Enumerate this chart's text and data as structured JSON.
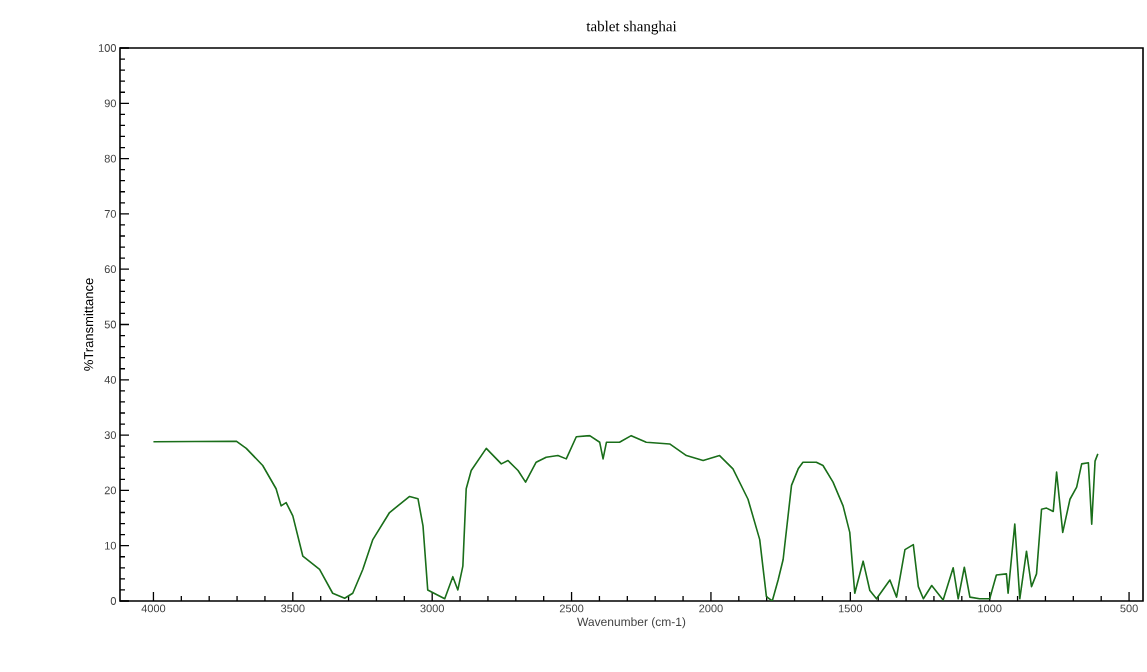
{
  "chart_data": {
    "type": "line",
    "title": "tablet shanghai",
    "xlabel": "Wavenumber (cm-1)",
    "ylabel": "%Transmittance",
    "xlim": [
      4120,
      450
    ],
    "ylim": [
      0,
      100
    ],
    "xticks": [
      4000,
      3500,
      3000,
      2500,
      2000,
      1500,
      1000,
      500
    ],
    "yticks": [
      0,
      10,
      20,
      30,
      40,
      50,
      60,
      70,
      80,
      90,
      100
    ],
    "grid": false,
    "marker": "none",
    "line_style": "solid",
    "series": [
      {
        "color": "#1a6e1a",
        "x": [
          4000,
          3703,
          3667,
          3608,
          3560,
          3542,
          3524,
          3500,
          3464,
          3404,
          3357,
          3314,
          3285,
          3249,
          3213,
          3153,
          3081,
          3051,
          3033,
          3016,
          2955,
          2926,
          2908,
          2890,
          2878,
          2860,
          2806,
          2752,
          2728,
          2692,
          2665,
          2627,
          2591,
          2549,
          2519,
          2483,
          2435,
          2399,
          2387,
          2375,
          2328,
          2286,
          2232,
          2148,
          2088,
          2028,
          1969,
          1921,
          1867,
          1825,
          1801,
          1780,
          1759,
          1741,
          1711,
          1687,
          1670,
          1622,
          1598,
          1562,
          1526,
          1502,
          1484,
          1454,
          1430,
          1406,
          1358,
          1334,
          1304,
          1274,
          1256,
          1238,
          1208,
          1167,
          1131,
          1113,
          1091,
          1071,
          1036,
          1000,
          976,
          940,
          934,
          910,
          892,
          868,
          850,
          832,
          814,
          796,
          772,
          760,
          738,
          712,
          688,
          670,
          646,
          634,
          622,
          612
        ],
        "values": [
          28.8,
          28.9,
          27.6,
          24.5,
          20.3,
          17.2,
          17.8,
          15.4,
          8.1,
          5.7,
          1.4,
          0.5,
          1.4,
          5.7,
          11.1,
          16,
          18.9,
          18.5,
          13.6,
          2,
          0.4,
          4.4,
          2,
          6.3,
          20.3,
          23.6,
          27.6,
          24.8,
          25.4,
          23.6,
          21.5,
          25.1,
          26,
          26.3,
          25.7,
          29.7,
          29.9,
          28.7,
          25.7,
          28.7,
          28.7,
          29.9,
          28.7,
          28.4,
          26.3,
          25.4,
          26.3,
          23.9,
          18.4,
          11.1,
          0.8,
          0,
          3.8,
          7.5,
          20.9,
          23.9,
          25.1,
          25.1,
          24.5,
          21.5,
          17.2,
          12.4,
          1.4,
          7.2,
          1.9,
          0.4,
          3.8,
          0.7,
          9.3,
          10.2,
          2.6,
          0.4,
          2.8,
          0.2,
          6,
          0.4,
          6.1,
          0.7,
          0.4,
          0.4,
          4.7,
          4.9,
          1.4,
          13.9,
          0.4,
          9,
          2.6,
          4.9,
          16.6,
          16.8,
          16.2,
          23.3,
          12.4,
          18.4,
          20.6,
          24.8,
          25,
          13.9,
          25.3,
          26.6
        ]
      }
    ]
  }
}
